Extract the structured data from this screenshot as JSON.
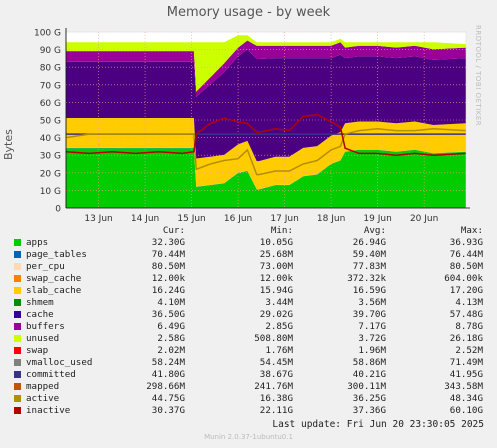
{
  "chart_data": {
    "type": "area",
    "title": "Memory usage - by week",
    "ylabel": "Bytes",
    "ylim": [
      0,
      100
    ],
    "yticks": [
      "0",
      "10 G",
      "20 G",
      "30 G",
      "40 G",
      "50 G",
      "60 G",
      "70 G",
      "80 G",
      "90 G",
      "100 G"
    ],
    "x_range": [
      12.3,
      20.9
    ],
    "xticks": [
      {
        "x": 13,
        "label": "13 Jun"
      },
      {
        "x": 14,
        "label": "14 Jun"
      },
      {
        "x": 15,
        "label": "15 Jun"
      },
      {
        "x": 16,
        "label": "16 Jun"
      },
      {
        "x": 17,
        "label": "17 Jun"
      },
      {
        "x": 18,
        "label": "18 Jun"
      },
      {
        "x": 19,
        "label": "19 Jun"
      },
      {
        "x": 20,
        "label": "20 Jun"
      }
    ],
    "x": [
      12.3,
      12.8,
      13.3,
      13.8,
      14.3,
      14.8,
      15.05,
      15.1,
      15.4,
      15.7,
      16.0,
      16.2,
      16.4,
      16.45,
      16.8,
      17.1,
      17.4,
      17.7,
      18.0,
      18.2,
      18.3,
      18.6,
      19.0,
      19.4,
      19.8,
      20.2,
      20.9
    ],
    "stacked_series": [
      {
        "name": "apps",
        "color": "#00cc00",
        "values": [
          34,
          34,
          34,
          34,
          34,
          34,
          34,
          12,
          13,
          14,
          20,
          21,
          10.5,
          10.5,
          13,
          13,
          18,
          19,
          25,
          27,
          32,
          33,
          33,
          32,
          33,
          31,
          32
        ]
      },
      {
        "name": "page_tables",
        "color": "#0066b3",
        "values": [
          0.07,
          0.07,
          0.07,
          0.07,
          0.07,
          0.07,
          0.07,
          0.07,
          0.07,
          0.07,
          0.07,
          0.07,
          0.07,
          0.07,
          0.07,
          0.07,
          0.07,
          0.07,
          0.07,
          0.07,
          0.07,
          0.07,
          0.07,
          0.07,
          0.07,
          0.07,
          0.07
        ]
      },
      {
        "name": "per_cpu",
        "color": "#ffd9b3",
        "values": [
          0.08,
          0.08,
          0.08,
          0.08,
          0.08,
          0.08,
          0.08,
          0.08,
          0.08,
          0.08,
          0.08,
          0.08,
          0.08,
          0.08,
          0.08,
          0.08,
          0.08,
          0.08,
          0.08,
          0.08,
          0.08,
          0.08,
          0.08,
          0.08,
          0.08,
          0.08,
          0.08
        ]
      },
      {
        "name": "swap_cache",
        "color": "#ff8000",
        "values": [
          0,
          0,
          0,
          0,
          0,
          0,
          0,
          0,
          0,
          0,
          0,
          0,
          0,
          0,
          0,
          0,
          0,
          0,
          0,
          0,
          0,
          0,
          0,
          0,
          0,
          0,
          0
        ]
      },
      {
        "name": "slab_cache",
        "color": "#ffcc00",
        "values": [
          17,
          17,
          17,
          17,
          17,
          17,
          17,
          16,
          16,
          16,
          16,
          17,
          16,
          16,
          16,
          16,
          16,
          16,
          16,
          16,
          16,
          16,
          16,
          16,
          16,
          16,
          16
        ]
      },
      {
        "name": "shmem",
        "color": "#330099",
        "values": [
          0,
          0,
          0,
          0,
          0,
          0,
          0,
          0,
          0,
          0,
          0,
          0,
          0,
          0,
          0,
          0,
          0,
          0,
          0,
          0,
          0,
          0,
          0,
          0,
          0,
          0,
          0
        ]
      },
      {
        "name": "cache",
        "color": "#4b0082",
        "values": [
          32,
          32,
          32,
          32,
          32,
          32,
          32,
          35,
          41,
          47,
          50,
          52,
          58,
          58,
          56,
          56,
          51,
          50,
          44,
          44,
          37,
          37,
          37,
          37,
          37,
          37,
          37
        ]
      },
      {
        "name": "buffers",
        "color": "#990099",
        "values": [
          6,
          6,
          6,
          6,
          6,
          6,
          6,
          3,
          4,
          5,
          5,
          5,
          7.5,
          7.5,
          7,
          7,
          7,
          7,
          7,
          7,
          6,
          6,
          6,
          6,
          6,
          6,
          6
        ]
      },
      {
        "name": "unused",
        "color": "#ccff00",
        "values": [
          5,
          5,
          5,
          5,
          5,
          5,
          5,
          28,
          20,
          12,
          7,
          3,
          2,
          2,
          2,
          2,
          2,
          2,
          2,
          2,
          3,
          2,
          2,
          3,
          2,
          4,
          2
        ]
      },
      {
        "name": "swap",
        "color": "#ff0000",
        "values": [
          0,
          0,
          0,
          0,
          0,
          0,
          0,
          0,
          0,
          0,
          0,
          0,
          0,
          0,
          0,
          0,
          0,
          0,
          0,
          0,
          0,
          0,
          0,
          0,
          0,
          0,
          0
        ]
      }
    ],
    "line_series": [
      {
        "name": "committed",
        "color": "#33348a",
        "values": [
          42,
          42,
          42,
          42,
          42,
          42,
          42,
          42,
          42,
          42,
          42,
          42,
          42,
          42,
          42,
          42,
          42,
          42,
          42,
          42,
          42,
          42,
          42,
          42,
          42,
          42,
          42
        ]
      },
      {
        "name": "active",
        "color": "#b38f00",
        "values": [
          40,
          42,
          42,
          42,
          42,
          42,
          42,
          22,
          25,
          27,
          28,
          33,
          19,
          19,
          21,
          21,
          25,
          27,
          33,
          35,
          42,
          44,
          45,
          44,
          44,
          45,
          44
        ]
      },
      {
        "name": "inactive",
        "color": "#b30000",
        "values": [
          32,
          31,
          32,
          31,
          32,
          31,
          32,
          42,
          48,
          51,
          49,
          48,
          43,
          43,
          45,
          44,
          52,
          53,
          49,
          46,
          34,
          31,
          31,
          30,
          31,
          30,
          31
        ]
      }
    ],
    "legend": {
      "headers": [
        "Cur:",
        "Min:",
        "Avg:",
        "Max:"
      ],
      "rows": [
        {
          "name": "apps",
          "color": "#00cc00",
          "cur": "32.30G",
          "min": "10.05G",
          "avg": "26.94G",
          "max": "36.93G"
        },
        {
          "name": "page_tables",
          "color": "#0066b3",
          "cur": "70.44M",
          "min": "25.68M",
          "avg": "59.40M",
          "max": "76.44M"
        },
        {
          "name": "per_cpu",
          "color": "#ffd9b3",
          "cur": "80.50M",
          "min": "73.00M",
          "avg": "77.83M",
          "max": "80.50M"
        },
        {
          "name": "swap_cache",
          "color": "#ff8000",
          "cur": "12.00k",
          "min": "12.00k",
          "avg": "372.32k",
          "max": "604.00k"
        },
        {
          "name": "slab_cache",
          "color": "#ffcc00",
          "cur": "16.24G",
          "min": "15.94G",
          "avg": "16.59G",
          "max": "17.20G"
        },
        {
          "name": "shmem",
          "color": "#008f00",
          "cur": "4.10M",
          "min": "3.44M",
          "avg": "3.56M",
          "max": "4.13M"
        },
        {
          "name": "cache",
          "color": "#330099",
          "cur": "36.50G",
          "min": "29.02G",
          "avg": "39.70G",
          "max": "57.48G"
        },
        {
          "name": "buffers",
          "color": "#990099",
          "cur": "6.49G",
          "min": "2.85G",
          "avg": "7.17G",
          "max": "8.78G"
        },
        {
          "name": "unused",
          "color": "#ccff00",
          "cur": "2.58G",
          "min": "508.80M",
          "avg": "3.72G",
          "max": "26.18G"
        },
        {
          "name": "swap",
          "color": "#ff0000",
          "cur": "2.02M",
          "min": "1.76M",
          "avg": "1.96M",
          "max": "2.52M"
        },
        {
          "name": "vmalloc_used",
          "color": "#808080",
          "cur": "58.24M",
          "min": "54.45M",
          "avg": "58.86M",
          "max": "71.49M"
        },
        {
          "name": "committed",
          "color": "#33348a",
          "cur": "41.80G",
          "min": "38.67G",
          "avg": "40.21G",
          "max": "41.95G"
        },
        {
          "name": "mapped",
          "color": "#c0540b",
          "cur": "298.66M",
          "min": "241.76M",
          "avg": "300.11M",
          "max": "343.58M"
        },
        {
          "name": "active",
          "color": "#b38f00",
          "cur": "44.75G",
          "min": "16.38G",
          "avg": "36.25G",
          "max": "48.34G"
        },
        {
          "name": "inactive",
          "color": "#b30000",
          "cur": "30.37G",
          "min": "22.11G",
          "avg": "37.36G",
          "max": "60.10G"
        }
      ]
    }
  },
  "side_text": "RRDTOOL / TOBI OETIKER",
  "last_update": "Last update: Fri Jun 20 23:30:05 2025",
  "footer": "Munin 2.0.37-1ubuntu0.1"
}
